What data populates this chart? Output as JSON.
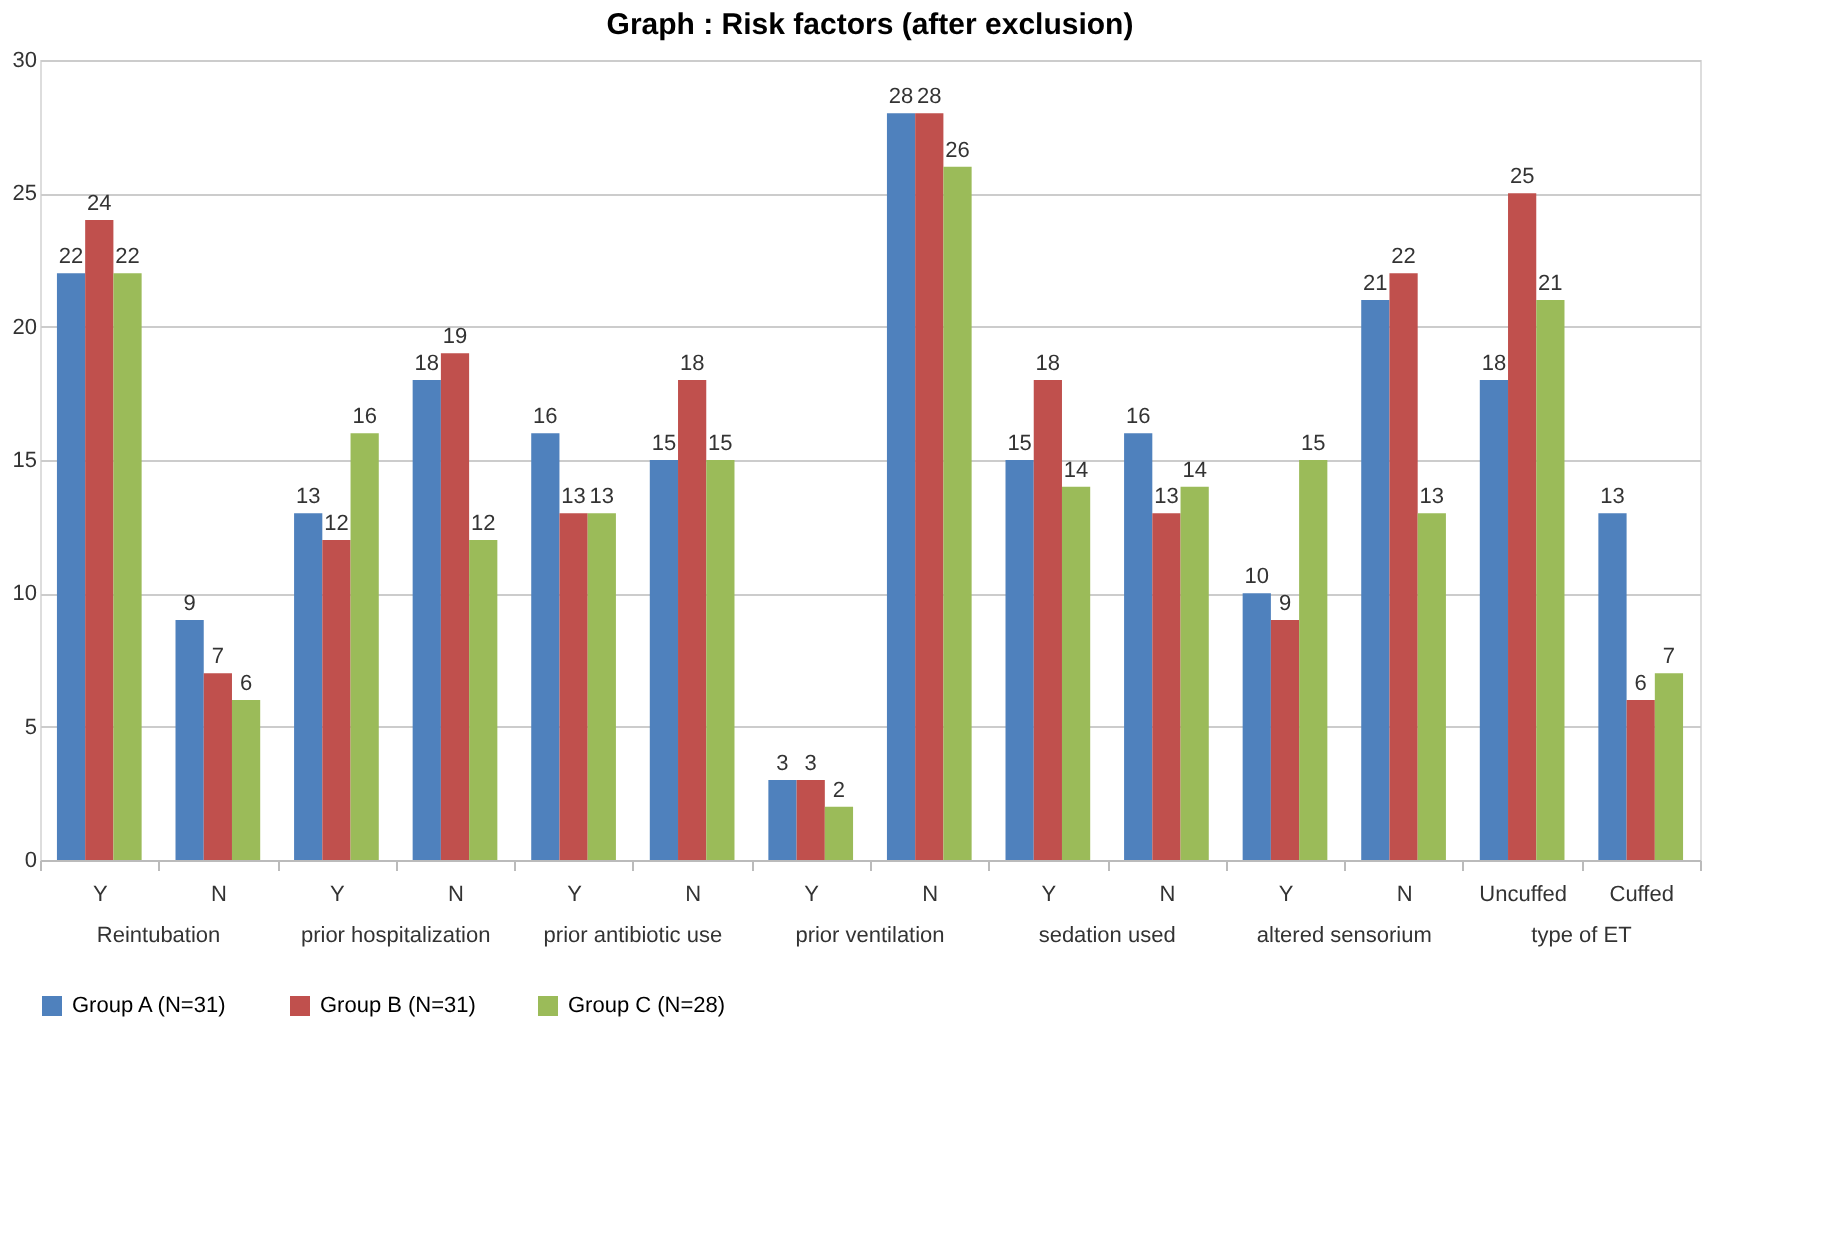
{
  "chart_data": {
    "type": "bar",
    "title": "Graph : Risk factors (after exclusion)",
    "categories": [
      "Y",
      "N",
      "Y",
      "N",
      "Y",
      "N",
      "Y",
      "N",
      "Y",
      "N",
      "Y",
      "N",
      "Uncuffed",
      "Cuffed"
    ],
    "series": [
      {
        "name": "Group A (N=31)",
        "color": "#4f81bd",
        "values": [
          22,
          9,
          13,
          18,
          16,
          15,
          3,
          28,
          15,
          16,
          10,
          21,
          18,
          13
        ]
      },
      {
        "name": "Group B (N=31)",
        "color": "#c0504d",
        "values": [
          24,
          7,
          12,
          19,
          13,
          18,
          3,
          28,
          18,
          13,
          9,
          22,
          25,
          6
        ]
      },
      {
        "name": "Group C (N=28)",
        "color": "#9bbb59",
        "values": [
          22,
          6,
          16,
          12,
          13,
          15,
          2,
          26,
          14,
          14,
          15,
          13,
          21,
          7
        ]
      }
    ],
    "annotations": [
      "Reintubation",
      "prior hospitalization",
      "prior antibiotic use",
      "prior ventilation",
      "sedation used",
      "altered sensorium",
      "type of ET"
    ],
    "ylim": [
      0,
      30
    ],
    "yticks": [
      0,
      5,
      10,
      15,
      20,
      25,
      30
    ],
    "grid": "y",
    "legend": "bottom",
    "data_labels": true
  }
}
